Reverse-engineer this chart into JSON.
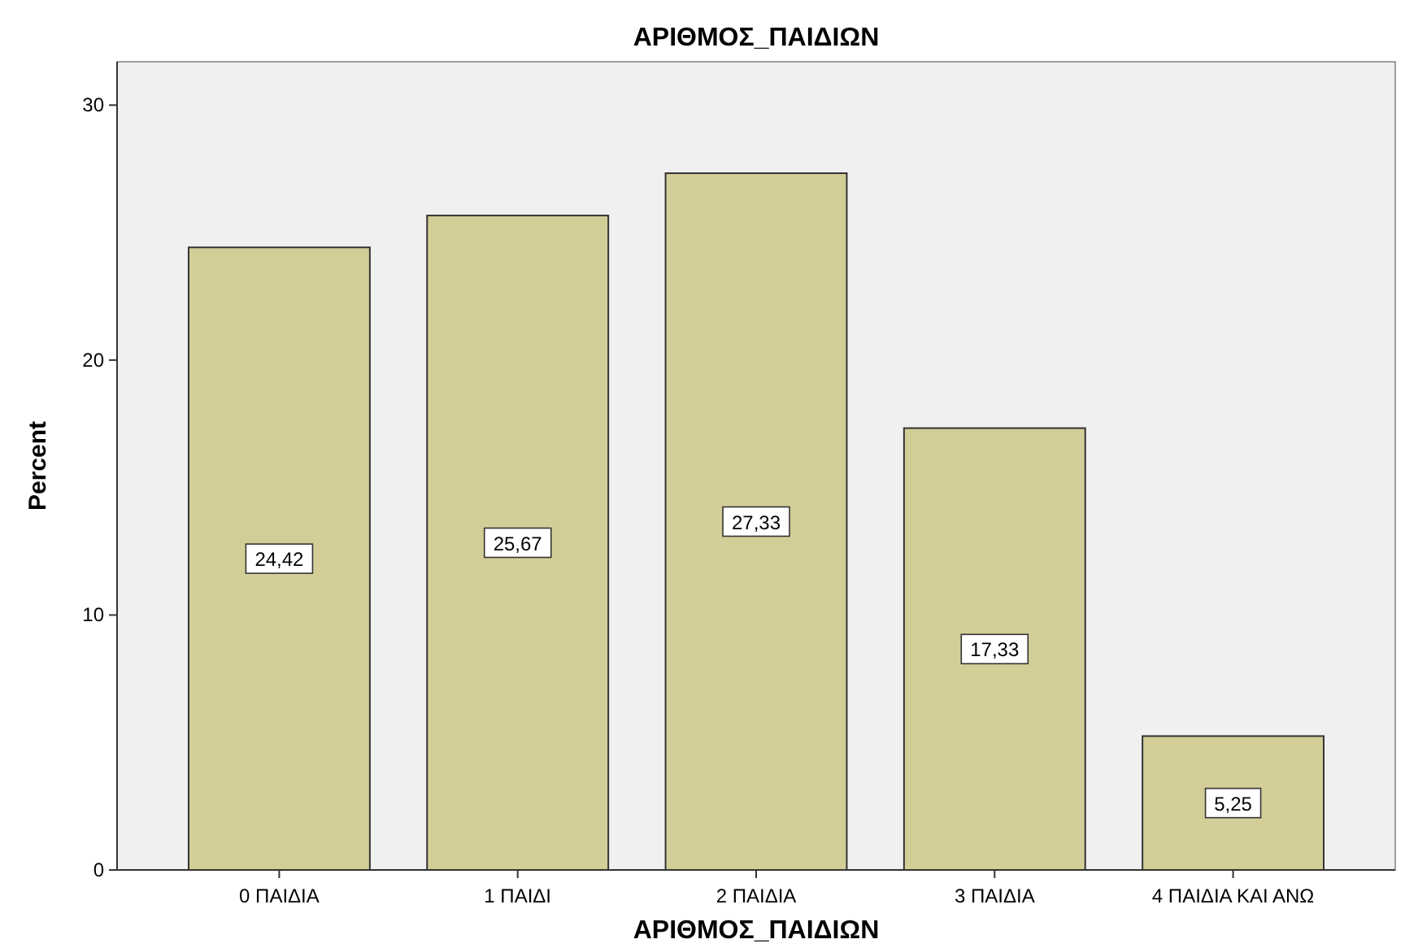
{
  "chart_data": {
    "type": "bar",
    "title": "ΑΡΙΘΜΟΣ_ΠΑΙΔΙΩΝ",
    "xlabel": "ΑΡΙΘΜΟΣ_ΠΑΙΔΙΩΝ",
    "ylabel": "Percent",
    "categories": [
      "0 ΠΑΙΔΙΑ",
      "1 ΠΑΙΔΙ",
      "2 ΠΑΙΔΙΑ",
      "3 ΠΑΙΔΙΑ",
      "4 ΠΑΙΔΙΑ ΚΑΙ ΑΝΩ"
    ],
    "values": [
      24.42,
      25.67,
      27.33,
      17.33,
      5.25
    ],
    "value_labels": [
      "24,42",
      "25,67",
      "27,33",
      "17,33",
      "5,25"
    ],
    "color": "#d3ce98",
    "ylim": [
      0,
      31.7
    ],
    "yticks": [
      0,
      10,
      20,
      30
    ],
    "grid": false
  }
}
